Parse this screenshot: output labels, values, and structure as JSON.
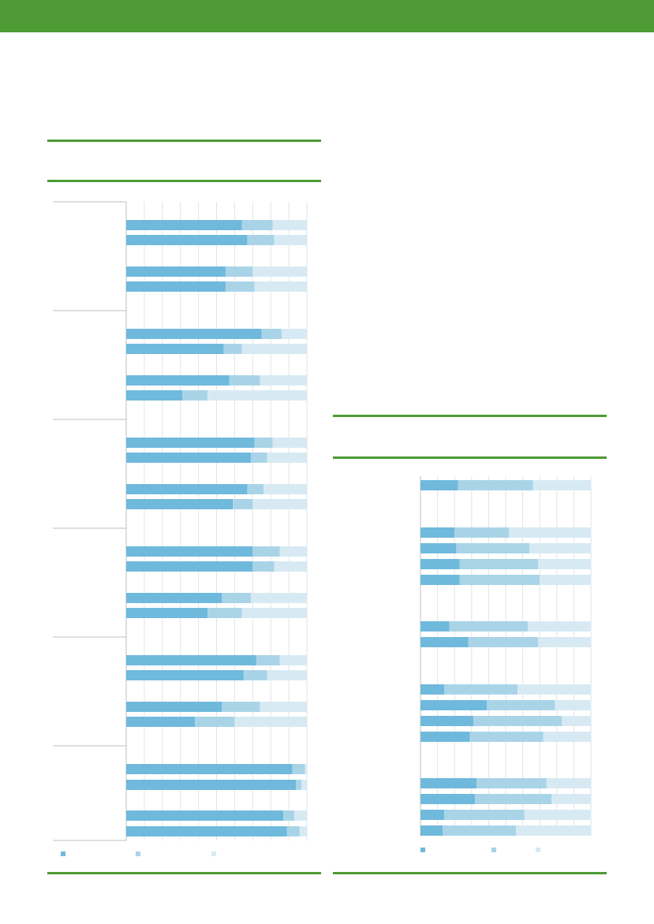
{
  "colors": {
    "header_band": "#4e9a35",
    "rule": "#4e9a35",
    "series": [
      "#6fb9dc",
      "#a9d4e8",
      "#d7eaf4"
    ],
    "gridline": "#e3e3e3",
    "divider": "#bfbfbf"
  },
  "header": {
    "title": ""
  },
  "chart_data": [
    {
      "type": "bar",
      "orientation": "horizontal",
      "stacked": true,
      "title": "",
      "xlim": [
        0,
        100
      ],
      "grid": true,
      "legend_position": "bottom-left",
      "series": [
        {
          "name": "",
          "color": "#6fb9dc",
          "values": [
            64,
            67,
            55,
            55,
            75,
            54,
            57,
            31,
            71,
            69,
            67,
            59,
            70,
            70,
            53,
            45,
            72,
            65,
            53,
            38,
            92,
            94,
            87,
            89
          ]
        },
        {
          "name": "",
          "color": "#a9d4e8",
          "values": [
            17,
            15,
            15,
            16,
            11,
            10,
            17,
            14,
            10,
            9,
            9,
            11,
            15,
            12,
            16,
            19,
            13,
            13,
            21,
            22,
            7,
            3,
            6,
            7
          ]
        },
        {
          "name": "",
          "color": "#d7eaf4",
          "values": [
            19,
            18,
            30,
            29,
            14,
            36,
            26,
            55,
            19,
            22,
            24,
            30,
            15,
            18,
            31,
            36,
            15,
            22,
            26,
            40,
            1,
            3,
            7,
            4
          ]
        }
      ]
    },
    {
      "type": "bar",
      "orientation": "horizontal",
      "stacked": true,
      "title": "",
      "xlim": [
        0,
        100
      ],
      "grid": true,
      "legend_position": "bottom-left",
      "series": [
        {
          "name": "",
          "color": "#6fb9dc",
          "values": [
            22,
            20,
            21,
            23,
            23,
            17,
            28,
            14,
            39,
            31,
            29,
            33,
            32,
            14,
            13
          ]
        },
        {
          "name": "",
          "color": "#a9d4e8",
          "values": [
            44,
            32,
            43,
            46,
            47,
            46,
            41,
            43,
            40,
            52,
            43,
            41,
            45,
            47,
            43
          ]
        },
        {
          "name": "",
          "color": "#d7eaf4",
          "values": [
            34,
            48,
            36,
            31,
            30,
            37,
            31,
            43,
            21,
            17,
            28,
            26,
            23,
            39,
            44
          ]
        }
      ]
    }
  ]
}
